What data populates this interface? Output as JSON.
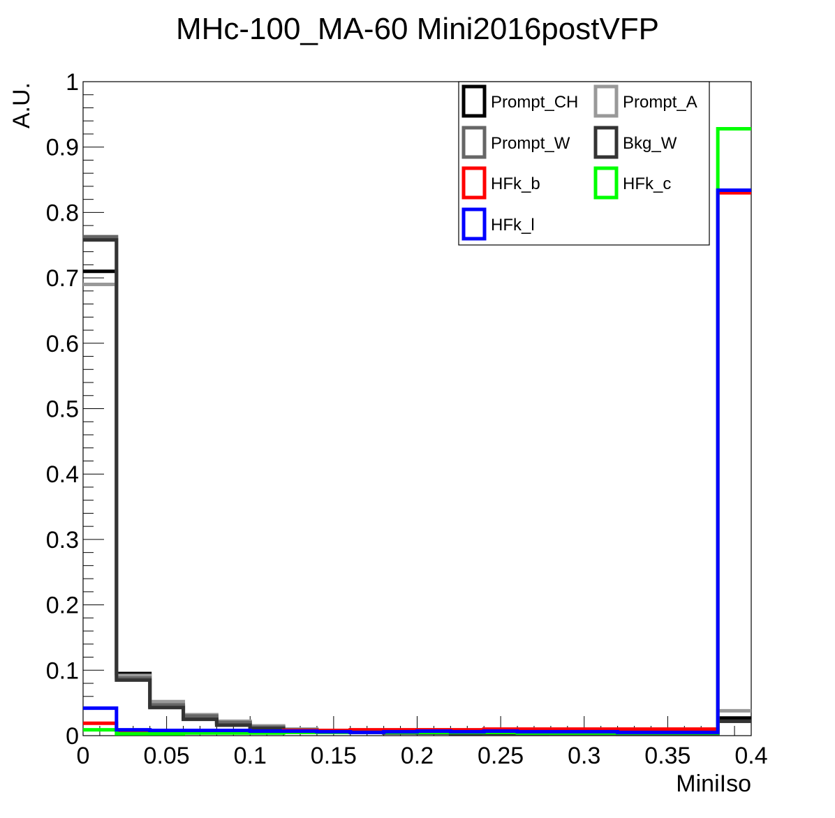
{
  "chart_data": {
    "type": "step-histogram",
    "title": "MHc-100_MA-60  Mini2016postVFP",
    "xlabel": "MiniIso",
    "ylabel": "A.U.",
    "xlim": [
      0,
      0.4
    ],
    "ylim": [
      0,
      1
    ],
    "grid": false,
    "legend_position": "top-right",
    "x_ticks": [
      "0",
      "0.05",
      "0.1",
      "0.15",
      "0.2",
      "0.25",
      "0.3",
      "0.35",
      "0.4"
    ],
    "y_ticks": [
      "0",
      "0.1",
      "0.2",
      "0.3",
      "0.4",
      "0.5",
      "0.6",
      "0.7",
      "0.8",
      "0.9",
      "1"
    ],
    "bin_edges": [
      0,
      0.02,
      0.04,
      0.06,
      0.08,
      0.1,
      0.12,
      0.14,
      0.16,
      0.18,
      0.2,
      0.22,
      0.24,
      0.26,
      0.28,
      0.3,
      0.32,
      0.34,
      0.36,
      0.38,
      0.4
    ],
    "series": [
      {
        "name": "Prompt_CH",
        "color": "#000000",
        "values": [
          0.71,
          0.095,
          0.045,
          0.028,
          0.019,
          0.013,
          0.009,
          0.007,
          0.006,
          0.005,
          0.005,
          0.004,
          0.004,
          0.003,
          0.003,
          0.003,
          0.003,
          0.003,
          0.003,
          0.027
        ]
      },
      {
        "name": "Prompt_A",
        "color": "#999999",
        "values": [
          0.69,
          0.092,
          0.052,
          0.032,
          0.022,
          0.015,
          0.01,
          0.008,
          0.007,
          0.006,
          0.005,
          0.005,
          0.004,
          0.004,
          0.004,
          0.003,
          0.003,
          0.003,
          0.003,
          0.038
        ]
      },
      {
        "name": "Prompt_W",
        "color": "#666666",
        "values": [
          0.763,
          0.088,
          0.047,
          0.03,
          0.02,
          0.013,
          0.009,
          0.007,
          0.006,
          0.005,
          0.004,
          0.004,
          0.003,
          0.003,
          0.003,
          0.003,
          0.002,
          0.002,
          0.002,
          0.022
        ]
      },
      {
        "name": "Bkg_W",
        "color": "#333333",
        "values": [
          0.758,
          0.085,
          0.043,
          0.025,
          0.016,
          0.011,
          0.008,
          0.006,
          0.005,
          0.004,
          0.004,
          0.003,
          0.003,
          0.003,
          0.002,
          0.002,
          0.002,
          0.002,
          0.002,
          0.022
        ]
      },
      {
        "name": "HFk_b",
        "color": "#ff0000",
        "values": [
          0.019,
          0.008,
          0.007,
          0.007,
          0.008,
          0.007,
          0.008,
          0.008,
          0.009,
          0.009,
          0.009,
          0.009,
          0.01,
          0.01,
          0.01,
          0.01,
          0.01,
          0.01,
          0.01,
          0.83
        ]
      },
      {
        "name": "HFk_c",
        "color": "#00ff00",
        "values": [
          0.009,
          0.003,
          0.003,
          0.004,
          0.004,
          0.004,
          0.005,
          0.005,
          0.005,
          0.005,
          0.005,
          0.005,
          0.005,
          0.004,
          0.004,
          0.004,
          0.004,
          0.004,
          0.004,
          0.928
        ]
      },
      {
        "name": "HFk_l",
        "color": "#0000ff",
        "values": [
          0.042,
          0.009,
          0.008,
          0.008,
          0.008,
          0.007,
          0.007,
          0.006,
          0.005,
          0.006,
          0.007,
          0.006,
          0.007,
          0.006,
          0.006,
          0.006,
          0.005,
          0.005,
          0.005,
          0.834
        ]
      }
    ]
  }
}
